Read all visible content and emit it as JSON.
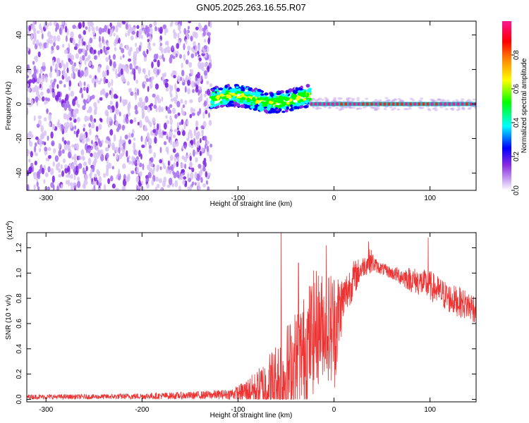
{
  "title": "GN05.2025.263.16.55.R07",
  "chart_data": [
    {
      "type": "heatmap",
      "xlabel": "Height of straight line (km)",
      "ylabel": "Frequency (Hz)",
      "xlim": [
        -320,
        148
      ],
      "ylim": [
        -50,
        48
      ],
      "x_ticks": [
        -300,
        -200,
        -100,
        0,
        100
      ],
      "y_ticks": [
        -40,
        -20,
        0,
        20,
        40
      ],
      "colorbar": {
        "label": "Normalized spectral amplitude",
        "range": [
          0,
          1
        ],
        "ticks": [
          0.0,
          0.2,
          0.4,
          0.6,
          0.8
        ],
        "colors": [
          "#ffffff",
          "#8a2be2",
          "#0000ff",
          "#00ffff",
          "#00ff00",
          "#ffff00",
          "#ff8000",
          "#ff0000",
          "#ff1493"
        ]
      },
      "regions": [
        {
          "x": [
            -320,
            -128
          ],
          "freq": [
            -50,
            48
          ],
          "amplitude": [
            0.05,
            0.25
          ],
          "description_color": "#8a2be2"
        },
        {
          "x": [
            -128,
            -25
          ],
          "freq": [
            -5,
            10
          ],
          "amplitude": [
            0.2,
            0.6
          ]
        },
        {
          "x": [
            -25,
            148
          ],
          "freq": [
            -2,
            2
          ],
          "amplitude": [
            0.8,
            0.95
          ]
        }
      ]
    },
    {
      "type": "line",
      "xlabel": "Height of straight line (km)",
      "ylabel": "SNR (10 * v/v)",
      "y_multiplier": "(x10",
      "y_multiplier_exp": "4",
      "y_multiplier_close": ")",
      "xlim": [
        -320,
        148
      ],
      "ylim": [
        -0.02,
        1.32
      ],
      "x_ticks": [
        -300,
        -200,
        -100,
        0,
        100
      ],
      "y_ticks": [
        0.0,
        0.2,
        0.4,
        0.6,
        0.8,
        1.0,
        1.2
      ],
      "color": "#ee3333",
      "envelope": {
        "x": [
          -320,
          -250,
          -150,
          -110,
          -100,
          -80,
          -60,
          -55,
          -45,
          -30,
          -20,
          -10,
          0,
          10,
          20,
          30,
          38,
          45,
          60,
          80,
          100,
          120,
          148
        ],
        "base": [
          0.02,
          0.02,
          0.03,
          0.04,
          0.05,
          0.08,
          0.12,
          0.15,
          0.25,
          0.4,
          0.55,
          0.6,
          0.55,
          0.8,
          0.95,
          1.05,
          1.1,
          1.05,
          1.0,
          0.95,
          0.9,
          0.8,
          0.72
        ],
        "amp": [
          0.02,
          0.02,
          0.03,
          0.04,
          0.06,
          0.15,
          0.35,
          0.4,
          0.4,
          0.45,
          0.5,
          0.4,
          0.5,
          0.18,
          0.15,
          0.08,
          0.1,
          0.05,
          0.05,
          0.1,
          0.12,
          0.12,
          0.12
        ]
      },
      "peaks": [
        {
          "x": -55,
          "y": 1.32
        },
        {
          "x": -37,
          "y": 1.08
        },
        {
          "x": -8,
          "y": 1.22
        },
        {
          "x": 36,
          "y": 1.25
        },
        {
          "x": 98,
          "y": 1.28
        }
      ]
    }
  ]
}
